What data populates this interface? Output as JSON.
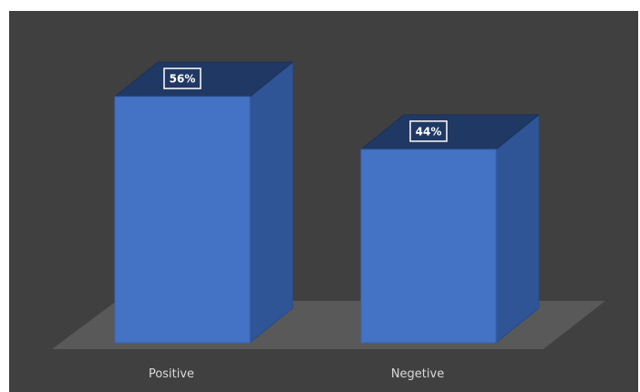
{
  "chart_data": {
    "type": "bar",
    "style": "3d-column",
    "categories": [
      "Positive",
      "Negetive"
    ],
    "values": [
      56,
      44
    ],
    "data_labels": [
      "56%",
      "44%"
    ],
    "value_unit": "%",
    "title": "",
    "xlabel": "",
    "ylabel": "",
    "ylim": [
      0,
      60
    ],
    "grid": false,
    "legend": "none"
  },
  "colors": {
    "background": "#404040",
    "floor": "#595959",
    "bar_front": "#4472c4",
    "bar_side": "#2f5597",
    "bar_top": "#203864",
    "label_box_border": "#ffffff",
    "category_text": "#d9d9d9"
  }
}
